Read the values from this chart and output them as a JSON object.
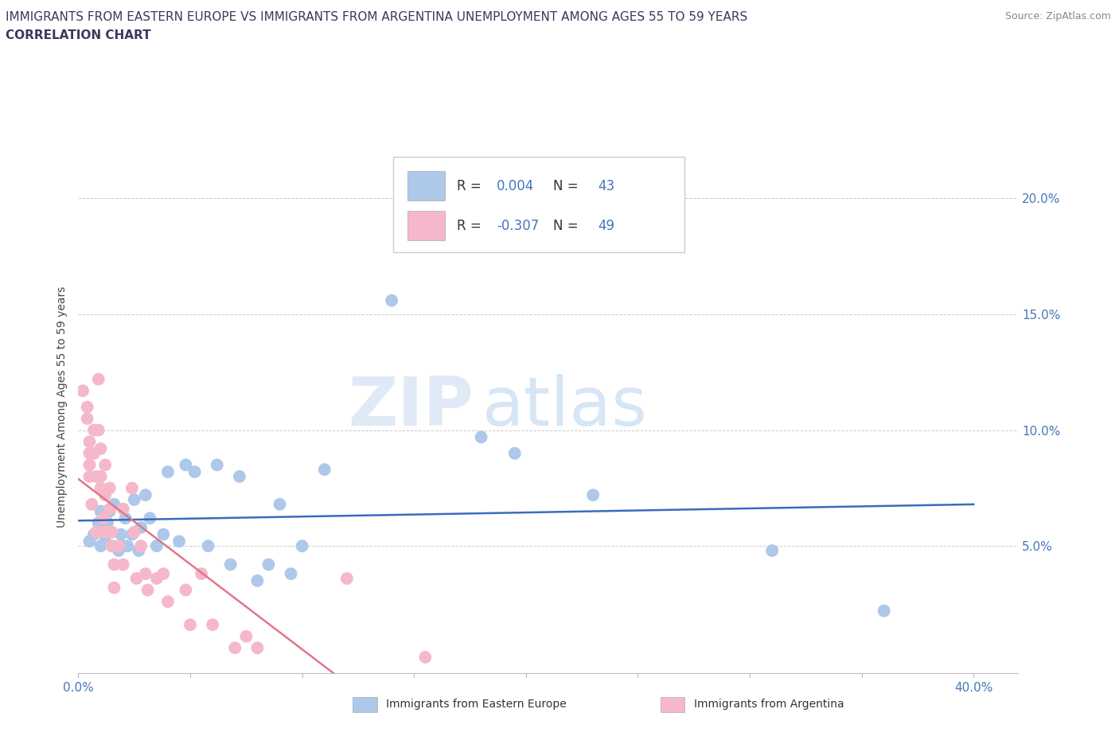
{
  "title_line1": "IMMIGRANTS FROM EASTERN EUROPE VS IMMIGRANTS FROM ARGENTINA UNEMPLOYMENT AMONG AGES 55 TO 59 YEARS",
  "title_line2": "CORRELATION CHART",
  "source": "Source: ZipAtlas.com",
  "ylabel": "Unemployment Among Ages 55 to 59 years",
  "xlim": [
    0.0,
    0.42
  ],
  "ylim": [
    -0.005,
    0.225
  ],
  "yticks": [
    0.05,
    0.1,
    0.15,
    0.2
  ],
  "ytick_labels": [
    "5.0%",
    "10.0%",
    "15.0%",
    "20.0%"
  ],
  "xtick_start_label": "0.0%",
  "xtick_end_label": "40.0%",
  "blue_R": "0.004",
  "blue_N": "43",
  "pink_R": "-0.307",
  "pink_N": "49",
  "blue_color": "#adc8e8",
  "pink_color": "#f5b8ca",
  "blue_line_color": "#3a6bbf",
  "pink_line_color": "#e0758a",
  "legend_blue_label": "Immigrants from Eastern Europe",
  "legend_pink_label": "Immigrants from Argentina",
  "watermark_zip": "ZIP",
  "watermark_atlas": "atlas",
  "label_color": "#4477bb",
  "title_color": "#3a3a5c",
  "blue_dots_x": [
    0.005,
    0.007,
    0.009,
    0.01,
    0.01,
    0.012,
    0.013,
    0.014,
    0.015,
    0.016,
    0.018,
    0.019,
    0.02,
    0.021,
    0.022,
    0.024,
    0.025,
    0.027,
    0.028,
    0.03,
    0.032,
    0.035,
    0.038,
    0.04,
    0.045,
    0.048,
    0.052,
    0.058,
    0.062,
    0.068,
    0.072,
    0.08,
    0.085,
    0.09,
    0.095,
    0.1,
    0.11,
    0.14,
    0.18,
    0.195,
    0.23,
    0.31,
    0.36
  ],
  "blue_dots_y": [
    0.052,
    0.055,
    0.06,
    0.05,
    0.065,
    0.052,
    0.06,
    0.065,
    0.05,
    0.068,
    0.048,
    0.055,
    0.05,
    0.062,
    0.05,
    0.055,
    0.07,
    0.048,
    0.058,
    0.072,
    0.062,
    0.05,
    0.055,
    0.082,
    0.052,
    0.085,
    0.082,
    0.05,
    0.085,
    0.042,
    0.08,
    0.035,
    0.042,
    0.068,
    0.038,
    0.05,
    0.083,
    0.156,
    0.097,
    0.09,
    0.072,
    0.048,
    0.022
  ],
  "pink_dots_x": [
    0.002,
    0.004,
    0.004,
    0.005,
    0.005,
    0.005,
    0.005,
    0.006,
    0.007,
    0.007,
    0.008,
    0.008,
    0.009,
    0.009,
    0.01,
    0.01,
    0.01,
    0.011,
    0.011,
    0.012,
    0.012,
    0.013,
    0.014,
    0.014,
    0.015,
    0.015,
    0.016,
    0.016,
    0.018,
    0.02,
    0.02,
    0.024,
    0.025,
    0.026,
    0.028,
    0.03,
    0.031,
    0.035,
    0.038,
    0.04,
    0.048,
    0.05,
    0.055,
    0.06,
    0.07,
    0.075,
    0.08,
    0.12,
    0.155
  ],
  "pink_dots_y": [
    0.117,
    0.11,
    0.105,
    0.095,
    0.09,
    0.085,
    0.08,
    0.068,
    0.1,
    0.09,
    0.08,
    0.056,
    0.122,
    0.1,
    0.092,
    0.08,
    0.075,
    0.062,
    0.056,
    0.085,
    0.072,
    0.056,
    0.075,
    0.066,
    0.056,
    0.05,
    0.042,
    0.032,
    0.05,
    0.066,
    0.042,
    0.075,
    0.056,
    0.036,
    0.05,
    0.038,
    0.031,
    0.036,
    0.038,
    0.026,
    0.031,
    0.016,
    0.038,
    0.016,
    0.006,
    0.011,
    0.006,
    0.036,
    0.002
  ]
}
